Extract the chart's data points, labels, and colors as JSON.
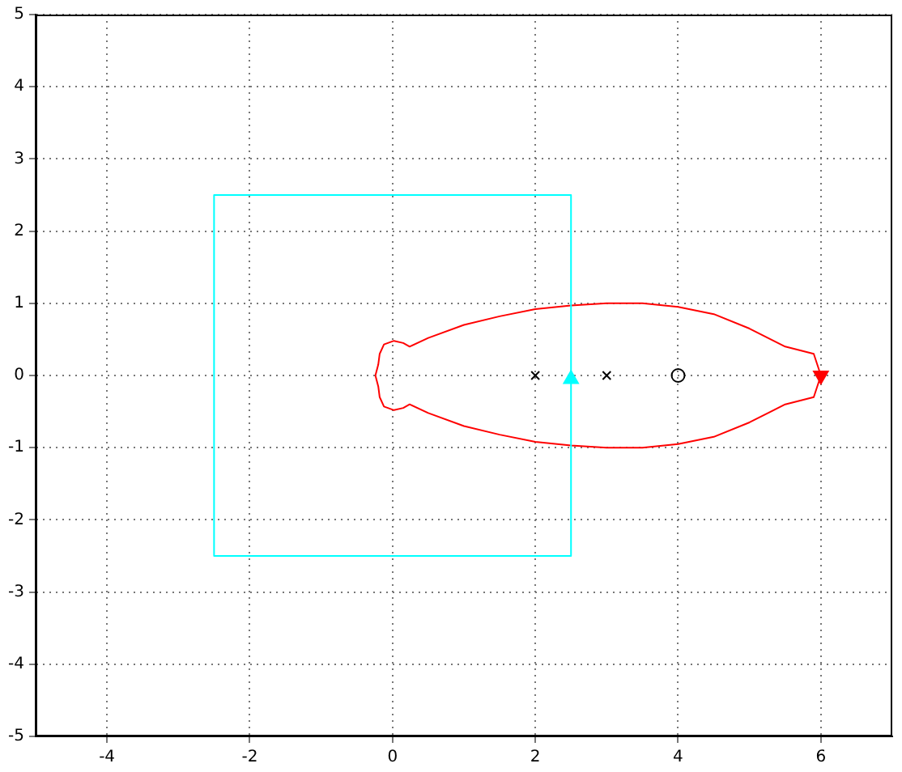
{
  "chart_data": {
    "type": "line",
    "xlim": [
      -5,
      7
    ],
    "ylim": [
      -5,
      5
    ],
    "xticks": [
      -4,
      -2,
      0,
      2,
      4,
      6
    ],
    "yticks": [
      -5,
      -4,
      -3,
      -2,
      -1,
      0,
      1,
      2,
      3,
      4,
      5
    ],
    "grid": true,
    "legend": false,
    "series": [
      {
        "color": "#00ffff",
        "marker": "none",
        "x": [
          -2.5,
          2.5
        ],
        "values": [
          2.5,
          2.5
        ]
      },
      {
        "color": "#00ffff",
        "marker": "none",
        "x": [
          -2.5,
          2.5
        ],
        "values": [
          -2.5,
          -2.5
        ]
      },
      {
        "color": "#00ffff",
        "marker": "none",
        "x": [
          -2.5,
          -2.5
        ],
        "values": [
          2.5,
          -2.5
        ]
      },
      {
        "color": "#00ffff",
        "marker": "none",
        "x": [
          2.5,
          2.5
        ],
        "values": [
          2.5,
          -2.5
        ]
      },
      {
        "color": "#ff0000",
        "marker": "none",
        "x": [
          -0.24,
          -0.2,
          -0.18,
          -0.12,
          0.02,
          0.15,
          0.24,
          0.5,
          1,
          1.5,
          2,
          2.5,
          3,
          3.5,
          4,
          4.5,
          5,
          5.5,
          5.9,
          6
        ],
        "values": [
          0,
          0.15,
          0.3,
          0.43,
          0.48,
          0.45,
          0.4,
          0.52,
          0.7,
          0.82,
          0.92,
          0.97,
          1,
          1,
          0.95,
          0.85,
          0.65,
          0.4,
          0.3,
          0
        ]
      },
      {
        "color": "#ff0000",
        "marker": "none",
        "x": [
          -0.24,
          -0.2,
          -0.18,
          -0.12,
          0.02,
          0.15,
          0.24,
          0.5,
          1,
          1.5,
          2,
          2.5,
          3,
          3.5,
          4,
          4.5,
          5,
          5.5,
          5.9,
          6
        ],
        "values": [
          0,
          -0.15,
          -0.3,
          -0.43,
          -0.48,
          -0.45,
          -0.4,
          -0.52,
          -0.7,
          -0.82,
          -0.92,
          -0.97,
          -1,
          -1,
          -0.95,
          -0.85,
          -0.65,
          -0.4,
          -0.3,
          0
        ]
      },
      {
        "type": "scatter",
        "color": "#000000",
        "marker": "cross",
        "x": [
          2,
          3
        ],
        "values": [
          0,
          0
        ]
      },
      {
        "type": "scatter",
        "color": "#000000",
        "marker": "circle",
        "x": [
          4
        ],
        "values": [
          0
        ]
      },
      {
        "type": "scatter",
        "color": "#00ffff",
        "marker": "triangle",
        "x": [
          2.5
        ],
        "values": [
          -0.05
        ]
      },
      {
        "type": "scatter",
        "color": "#ff0000",
        "marker": "triangle_down",
        "x": [
          6
        ],
        "values": [
          0
        ]
      }
    ]
  }
}
